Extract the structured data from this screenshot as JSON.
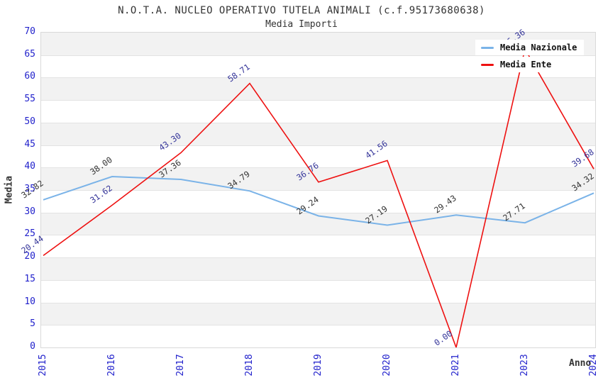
{
  "chart_data": {
    "type": "line",
    "title": "N.O.T.A. NUCLEO OPERATIVO TUTELA ANIMALI (c.f.95173680638)",
    "subtitle": "Media Importi",
    "xlabel": "Anno",
    "ylabel": "Media",
    "categories": [
      "2015",
      "2016",
      "2017",
      "2018",
      "2019",
      "2020",
      "2021",
      "2023",
      "2024"
    ],
    "series": [
      {
        "name": "Media Nazionale",
        "color": "#7ab3e8",
        "label_color": "#333333",
        "values": [
          32.82,
          38.0,
          37.36,
          34.79,
          29.24,
          27.19,
          29.43,
          27.71,
          34.32
        ]
      },
      {
        "name": "Media Ente",
        "color": "#ee1111",
        "label_color": "#333399",
        "values": [
          20.44,
          31.62,
          43.3,
          58.71,
          36.76,
          41.56,
          0.0,
          66.36,
          39.68
        ]
      }
    ],
    "ylim": [
      0,
      70
    ],
    "ytick_step": 5,
    "grid": true,
    "band_color": "#f2f2f2",
    "tick_color": "#2222cc",
    "legend_position": "top-right"
  }
}
